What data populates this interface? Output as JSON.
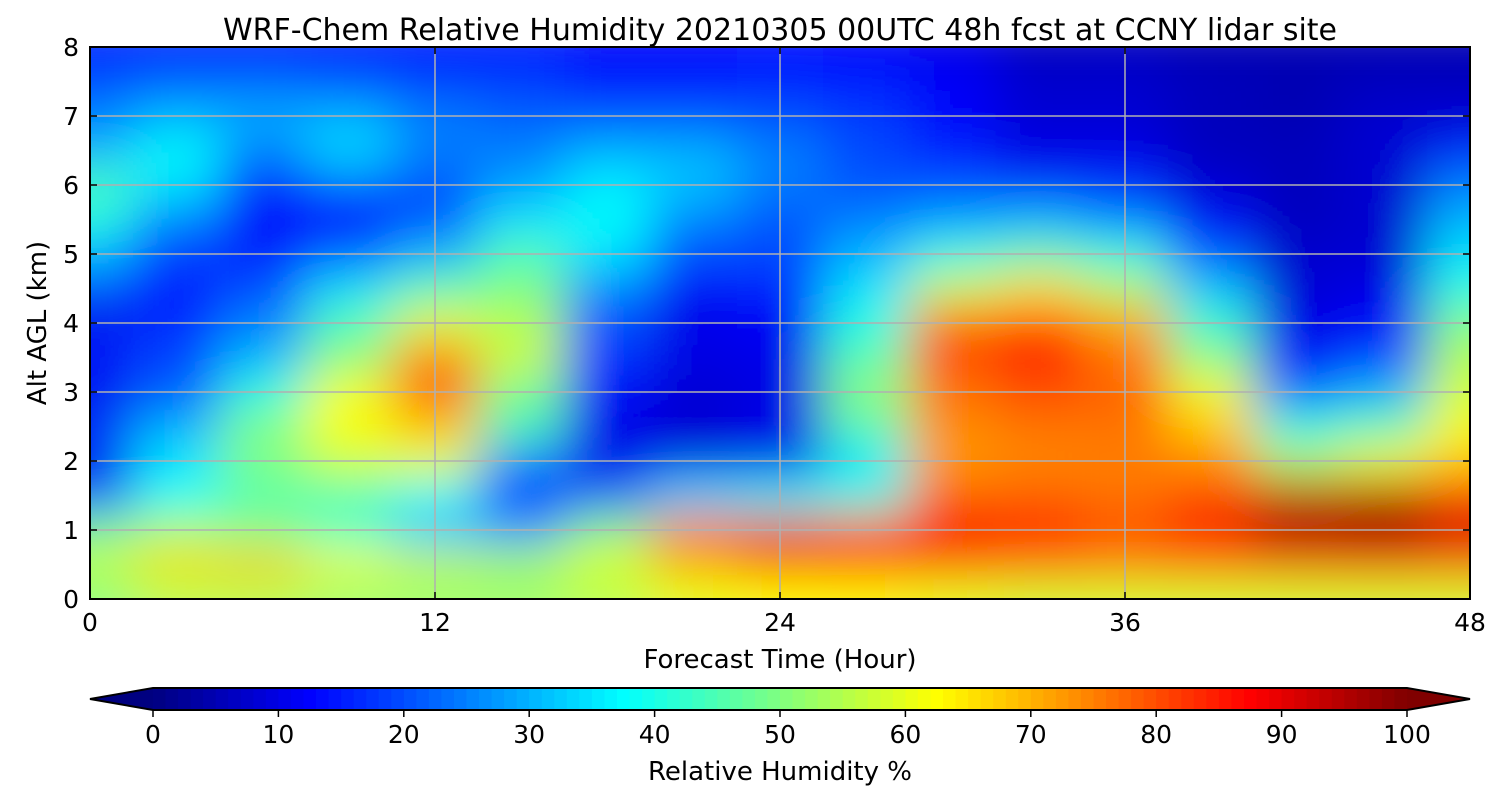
{
  "chart_data": {
    "type": "heatmap",
    "title": "WRF-Chem Relative Humidity 20210305 00UTC 48h fcst at CCNY lidar site",
    "xlabel": "Forecast Time (Hour)",
    "ylabel": "Alt AGL (km)",
    "xlim": [
      0,
      48
    ],
    "ylim": [
      0,
      8
    ],
    "x_ticks": [
      0,
      12,
      24,
      36,
      48
    ],
    "y_ticks": [
      0,
      1,
      2,
      3,
      4,
      5,
      6,
      7,
      8
    ],
    "grid": true,
    "x": [
      0,
      3,
      6,
      9,
      12,
      15,
      18,
      21,
      24,
      27,
      30,
      33,
      36,
      39,
      42,
      45,
      48
    ],
    "y": [
      0.1,
      0.5,
      1.0,
      1.5,
      2.0,
      2.5,
      3.0,
      3.5,
      4.0,
      4.5,
      5.0,
      5.5,
      6.0,
      6.5,
      7.0,
      7.5,
      8.0
    ],
    "z": [
      [
        50,
        55,
        55,
        52,
        52,
        52,
        55,
        60,
        62,
        62,
        60,
        58,
        58,
        58,
        58,
        58,
        58
      ],
      [
        58,
        66,
        68,
        62,
        58,
        55,
        60,
        70,
        78,
        82,
        80,
        78,
        76,
        78,
        80,
        82,
        80
      ],
      [
        48,
        54,
        50,
        42,
        30,
        28,
        50,
        80,
        90,
        80,
        88,
        85,
        80,
        88,
        97,
        98,
        92
      ],
      [
        20,
        38,
        45,
        45,
        38,
        15,
        22,
        35,
        38,
        40,
        78,
        78,
        76,
        80,
        93,
        95,
        82
      ],
      [
        10,
        35,
        50,
        58,
        60,
        25,
        10,
        10,
        10,
        35,
        72,
        74,
        75,
        74,
        55,
        62,
        68
      ],
      [
        18,
        30,
        50,
        62,
        68,
        45,
        10,
        8,
        10,
        45,
        74,
        76,
        76,
        68,
        40,
        45,
        62
      ],
      [
        10,
        20,
        40,
        62,
        80,
        48,
        12,
        8,
        10,
        52,
        76,
        80,
        78,
        62,
        22,
        30,
        58
      ],
      [
        15,
        20,
        30,
        50,
        75,
        58,
        18,
        10,
        10,
        45,
        80,
        84,
        76,
        50,
        12,
        18,
        55
      ],
      [
        10,
        15,
        25,
        45,
        60,
        55,
        20,
        10,
        12,
        40,
        78,
        82,
        72,
        42,
        10,
        12,
        50
      ],
      [
        20,
        15,
        20,
        35,
        45,
        50,
        25,
        12,
        15,
        35,
        58,
        65,
        55,
        32,
        8,
        10,
        40
      ],
      [
        30,
        18,
        15,
        20,
        30,
        45,
        35,
        20,
        20,
        30,
        40,
        45,
        40,
        20,
        8,
        8,
        35
      ],
      [
        40,
        25,
        12,
        15,
        20,
        35,
        38,
        25,
        20,
        25,
        28,
        30,
        25,
        12,
        6,
        8,
        30
      ],
      [
        45,
        35,
        15,
        20,
        20,
        28,
        36,
        32,
        25,
        20,
        20,
        15,
        15,
        8,
        6,
        8,
        25
      ],
      [
        30,
        38,
        25,
        35,
        25,
        25,
        30,
        30,
        25,
        20,
        15,
        10,
        10,
        6,
        6,
        8,
        15
      ],
      [
        25,
        30,
        30,
        30,
        25,
        22,
        20,
        20,
        20,
        18,
        12,
        8,
        8,
        6,
        5,
        8,
        8
      ],
      [
        20,
        22,
        22,
        20,
        18,
        18,
        15,
        15,
        16,
        15,
        12,
        8,
        8,
        6,
        5,
        6,
        6
      ],
      [
        15,
        15,
        15,
        15,
        15,
        15,
        12,
        12,
        14,
        12,
        10,
        6,
        6,
        5,
        5,
        5,
        5
      ]
    ],
    "colorbar": {
      "label": "Relative Humidity %",
      "min": 0,
      "max": 100,
      "ticks": [
        0,
        10,
        20,
        30,
        40,
        50,
        60,
        70,
        80,
        90,
        100
      ],
      "extend": "both",
      "colormap": "jet"
    }
  }
}
